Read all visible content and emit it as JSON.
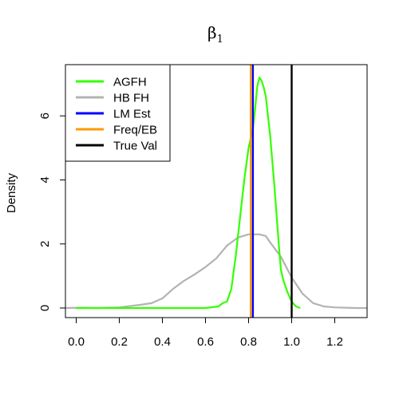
{
  "chart_data": {
    "type": "line",
    "title": {
      "base": "β",
      "subscript": "1"
    },
    "xlabel": "",
    "ylabel": "Density",
    "xlim": [
      -0.05,
      1.35
    ],
    "ylim": [
      -0.3,
      7.6
    ],
    "x_ticks": [
      0.0,
      0.2,
      0.4,
      0.6,
      0.8,
      1.0,
      1.2
    ],
    "x_tick_labels": [
      "0.0",
      "0.2",
      "0.4",
      "0.6",
      "0.8",
      "1.0",
      "1.2"
    ],
    "y_ticks": [
      0,
      2,
      4,
      6
    ],
    "y_tick_labels": [
      "0",
      "2",
      "4",
      "6"
    ],
    "grid": false,
    "legend_position": "top-left",
    "series": [
      {
        "name": "AGFH",
        "color": "#33ff00",
        "kind": "density",
        "x": [
          0.0,
          0.6,
          0.66,
          0.68,
          0.7,
          0.72,
          0.74,
          0.76,
          0.78,
          0.8,
          0.82,
          0.83,
          0.84,
          0.85,
          0.86,
          0.87,
          0.88,
          0.9,
          0.92,
          0.94,
          0.95,
          0.96,
          0.98,
          1.0,
          1.02,
          1.04
        ],
        "y": [
          0,
          0,
          0.05,
          0.15,
          0.2,
          0.6,
          1.6,
          2.8,
          4.0,
          5.0,
          5.6,
          6.2,
          6.9,
          7.2,
          7.1,
          6.9,
          6.6,
          5.4,
          3.8,
          2.0,
          1.2,
          0.9,
          0.5,
          0.2,
          0.05,
          0.0
        ]
      },
      {
        "name": "HB FH",
        "color": "#b3b3b3",
        "kind": "density",
        "x": [
          -0.05,
          0.0,
          0.1,
          0.2,
          0.3,
          0.35,
          0.4,
          0.45,
          0.5,
          0.55,
          0.6,
          0.65,
          0.7,
          0.75,
          0.8,
          0.85,
          0.88,
          0.9,
          0.95,
          1.0,
          1.05,
          1.1,
          1.15,
          1.2,
          1.25,
          1.3,
          1.35
        ],
        "y": [
          0.0,
          0.01,
          0.0,
          0.02,
          0.1,
          0.15,
          0.3,
          0.6,
          0.85,
          1.05,
          1.28,
          1.55,
          1.95,
          2.2,
          2.3,
          2.3,
          2.25,
          2.05,
          1.6,
          0.95,
          0.45,
          0.15,
          0.05,
          0.02,
          0.01,
          0.0,
          0.0
        ]
      },
      {
        "name": "LM Est",
        "color": "#0000ff",
        "kind": "vline",
        "x": 0.82
      },
      {
        "name": "Freq/EB",
        "color": "#ff9900",
        "kind": "vline",
        "x": 0.81
      },
      {
        "name": "True Val",
        "color": "#000000",
        "kind": "vline",
        "x": 1.0
      }
    ],
    "legend": [
      "AGFH",
      "HB FH",
      "LM Est",
      "Freq/EB",
      "True Val"
    ]
  }
}
